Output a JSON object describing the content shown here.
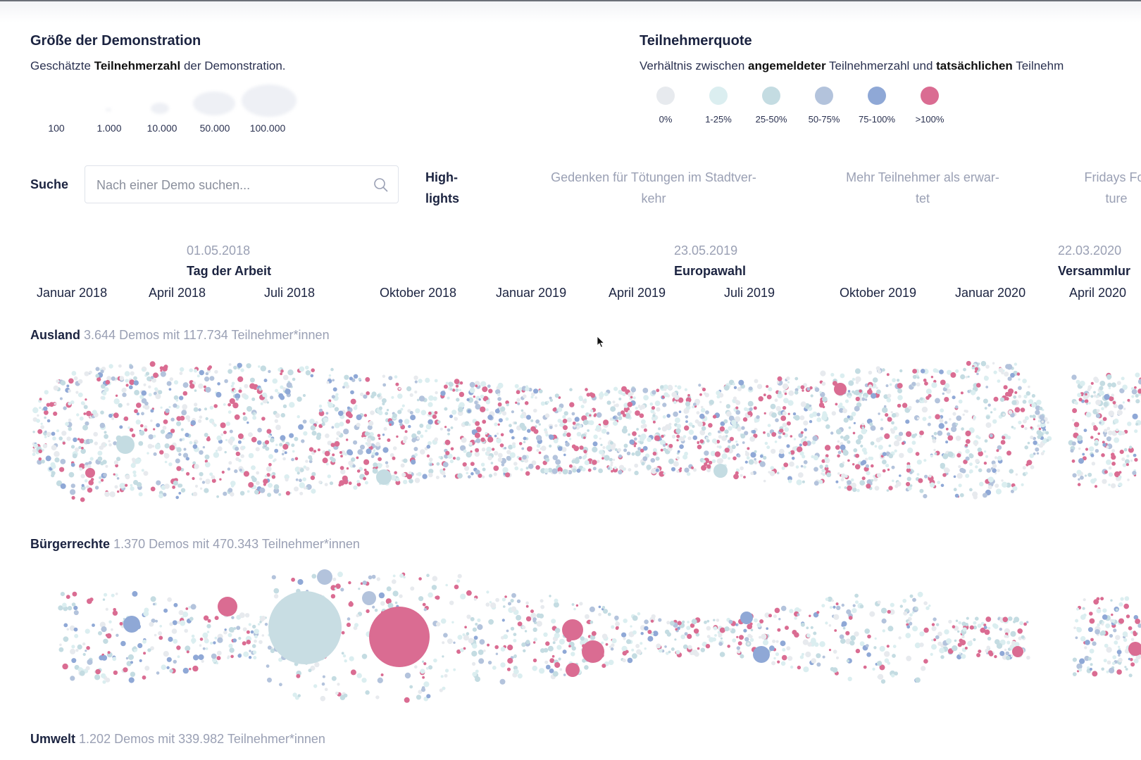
{
  "size_legend": {
    "title": "Größe der Demonstration",
    "desc_pre": "Geschätzte ",
    "desc_bold": "Teilnehmerzahl",
    "desc_post": " der Demonstration.",
    "labels": [
      "100",
      "1.000",
      "10.000",
      "50.000",
      "100.000"
    ]
  },
  "rate_legend": {
    "title": "Teilnehmerquote",
    "desc_1": "Verhältnis zwischen ",
    "desc_2": "angemeldeter",
    "desc_3": " Teilnehmerzahl und ",
    "desc_4": "tatsächlichen",
    "desc_5": " Teilnehm",
    "items": [
      {
        "label": "0%",
        "color": "#e7eaee"
      },
      {
        "label": "1-25%",
        "color": "#dbeef0"
      },
      {
        "label": "25-50%",
        "color": "#c4dce2"
      },
      {
        "label": "50-75%",
        "color": "#b3c3dc"
      },
      {
        "label": "75-100%",
        "color": "#8fa8d6"
      },
      {
        "label": ">100%",
        "color": "#da6c92"
      }
    ]
  },
  "search": {
    "label": "Suche",
    "placeholder": "Nach einer Demo suchen..."
  },
  "highlights": {
    "label_1": "High-",
    "label_2": "lights",
    "items": [
      {
        "line1": "Gedenken für Tötungen im Stadtver-",
        "line2": "kehr"
      },
      {
        "line1": "Mehr Teilnehmer als erwar-",
        "line2": "tet"
      },
      {
        "line1": "Fridays For",
        "line2": "ture"
      }
    ]
  },
  "timeline": {
    "events": [
      {
        "date": "01.05.2018",
        "name": "Tag der Arbeit"
      },
      {
        "date": "23.05.2019",
        "name": "Europawahl"
      },
      {
        "date": "22.03.2020",
        "name": "Versammlur"
      }
    ],
    "months": [
      "Januar 2018",
      "April 2018",
      "Juli 2018",
      "Oktober 2018",
      "Januar 2019",
      "April 2019",
      "Juli 2019",
      "Oktober 2019",
      "Januar 2020",
      "April 2020"
    ]
  },
  "categories": [
    {
      "name": "Ausland",
      "stats": "3.644 Demos mit 117.734 Teilnehmer*innen"
    },
    {
      "name": "Bürgerrechte",
      "stats": "1.370 Demos mit 470.343 Teilnehmer*innen"
    },
    {
      "name": "Umwelt",
      "stats": "1.202 Demos mit 339.982 Teilnehmer*innen"
    }
  ],
  "colors": {
    "accent_pink": "#da6c92",
    "blue": "#8fa8d6",
    "light_teal": "#c4dce2",
    "text_dark": "#1b2340",
    "text_muted": "#9aa0b4"
  }
}
